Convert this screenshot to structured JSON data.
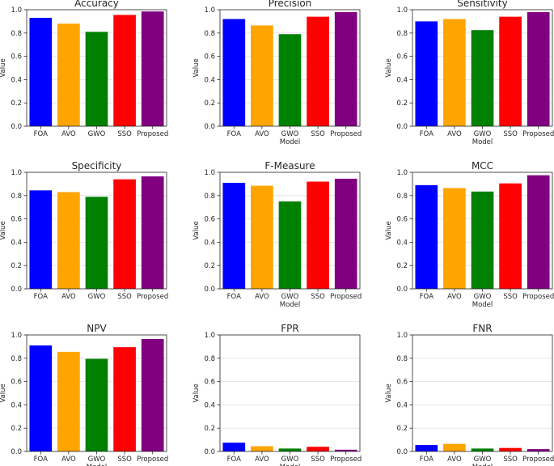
{
  "chart_data": [
    {
      "type": "bar",
      "title": "Accuracy",
      "xlabel": "",
      "ylabel": "Value",
      "ylim": [
        0,
        1.0
      ],
      "yticks": [
        "0.0",
        "0.2",
        "0.4",
        "0.6",
        "0.8",
        "1.0"
      ],
      "categories": [
        "FOA",
        "AVO",
        "GWO",
        "SSO",
        "Proposed"
      ],
      "values": [
        0.93,
        0.88,
        0.81,
        0.955,
        0.985
      ]
    },
    {
      "type": "bar",
      "title": "Precision",
      "xlabel": "Model",
      "ylabel": "Value",
      "ylim": [
        0,
        1.0
      ],
      "yticks": [
        "0.0",
        "0.2",
        "0.4",
        "0.6",
        "0.8",
        "1.0"
      ],
      "categories": [
        "FOA",
        "AVO",
        "GWO",
        "SSO",
        "Proposed"
      ],
      "values": [
        0.92,
        0.865,
        0.79,
        0.94,
        0.98
      ]
    },
    {
      "type": "bar",
      "title": "Sensitivity",
      "xlabel": "Model",
      "ylabel": "Value",
      "ylim": [
        0,
        1.0
      ],
      "yticks": [
        "0.0",
        "0.2",
        "0.4",
        "0.6",
        "0.8",
        "1.0"
      ],
      "categories": [
        "FOA",
        "AVO",
        "GWO",
        "SSO",
        "Proposed"
      ],
      "values": [
        0.9,
        0.92,
        0.825,
        0.94,
        0.98
      ]
    },
    {
      "type": "bar",
      "title": "Specificity",
      "xlabel": "",
      "ylabel": "Value",
      "ylim": [
        0,
        1.0
      ],
      "yticks": [
        "0.0",
        "0.2",
        "0.4",
        "0.6",
        "0.8",
        "1.0"
      ],
      "categories": [
        "FOA",
        "AVO",
        "GWO",
        "SSO",
        "Proposed"
      ],
      "values": [
        0.845,
        0.83,
        0.79,
        0.94,
        0.965
      ]
    },
    {
      "type": "bar",
      "title": "F-Measure",
      "xlabel": "Model",
      "ylabel": "Value",
      "ylim": [
        0,
        1.0
      ],
      "yticks": [
        "0.0",
        "0.2",
        "0.4",
        "0.6",
        "0.8",
        "1.0"
      ],
      "categories": [
        "FOA",
        "AVO",
        "GWO",
        "SSO",
        "Proposed"
      ],
      "values": [
        0.91,
        0.885,
        0.75,
        0.92,
        0.945
      ]
    },
    {
      "type": "bar",
      "title": "MCC",
      "xlabel": "Model",
      "ylabel": "Value",
      "ylim": [
        0,
        1.0
      ],
      "yticks": [
        "0.0",
        "0.2",
        "0.4",
        "0.6",
        "0.8",
        "1.0"
      ],
      "categories": [
        "FOA",
        "AVO",
        "GWO",
        "SSO",
        "Proposed"
      ],
      "values": [
        0.89,
        0.865,
        0.835,
        0.905,
        0.975
      ]
    },
    {
      "type": "bar",
      "title": "NPV",
      "xlabel": "Model",
      "ylabel": "Value",
      "ylim": [
        0,
        1.0
      ],
      "yticks": [
        "0.0",
        "0.2",
        "0.4",
        "0.6",
        "0.8",
        "1.0"
      ],
      "categories": [
        "FOA",
        "AVO",
        "GWO",
        "SSO",
        "Proposed"
      ],
      "values": [
        0.91,
        0.855,
        0.795,
        0.895,
        0.965
      ]
    },
    {
      "type": "bar",
      "title": "FPR",
      "xlabel": "Model",
      "ylabel": "Value",
      "ylim": [
        0,
        1.0
      ],
      "yticks": [
        "0.0",
        "0.2",
        "0.4",
        "0.6",
        "0.8",
        "1.0"
      ],
      "categories": [
        "FOA",
        "AVO",
        "GWO",
        "SSO",
        "Proposed"
      ],
      "values": [
        0.075,
        0.045,
        0.025,
        0.04,
        0.015
      ]
    },
    {
      "type": "bar",
      "title": "FNR",
      "xlabel": "Model",
      "ylabel": "Value",
      "ylim": [
        0,
        1.0
      ],
      "yticks": [
        "0.0",
        "0.2",
        "0.4",
        "0.6",
        "0.8",
        "1.0"
      ],
      "categories": [
        "FOA",
        "AVO",
        "GWO",
        "SSO",
        "Proposed"
      ],
      "values": [
        0.055,
        0.065,
        0.025,
        0.03,
        0.02
      ]
    }
  ],
  "colors": {
    "bars": [
      "#0000ff",
      "#ffa500",
      "#008000",
      "#ff0000",
      "#800080"
    ],
    "grid": "#e0e0e0",
    "axis": "#262626",
    "text": "#262626"
  }
}
